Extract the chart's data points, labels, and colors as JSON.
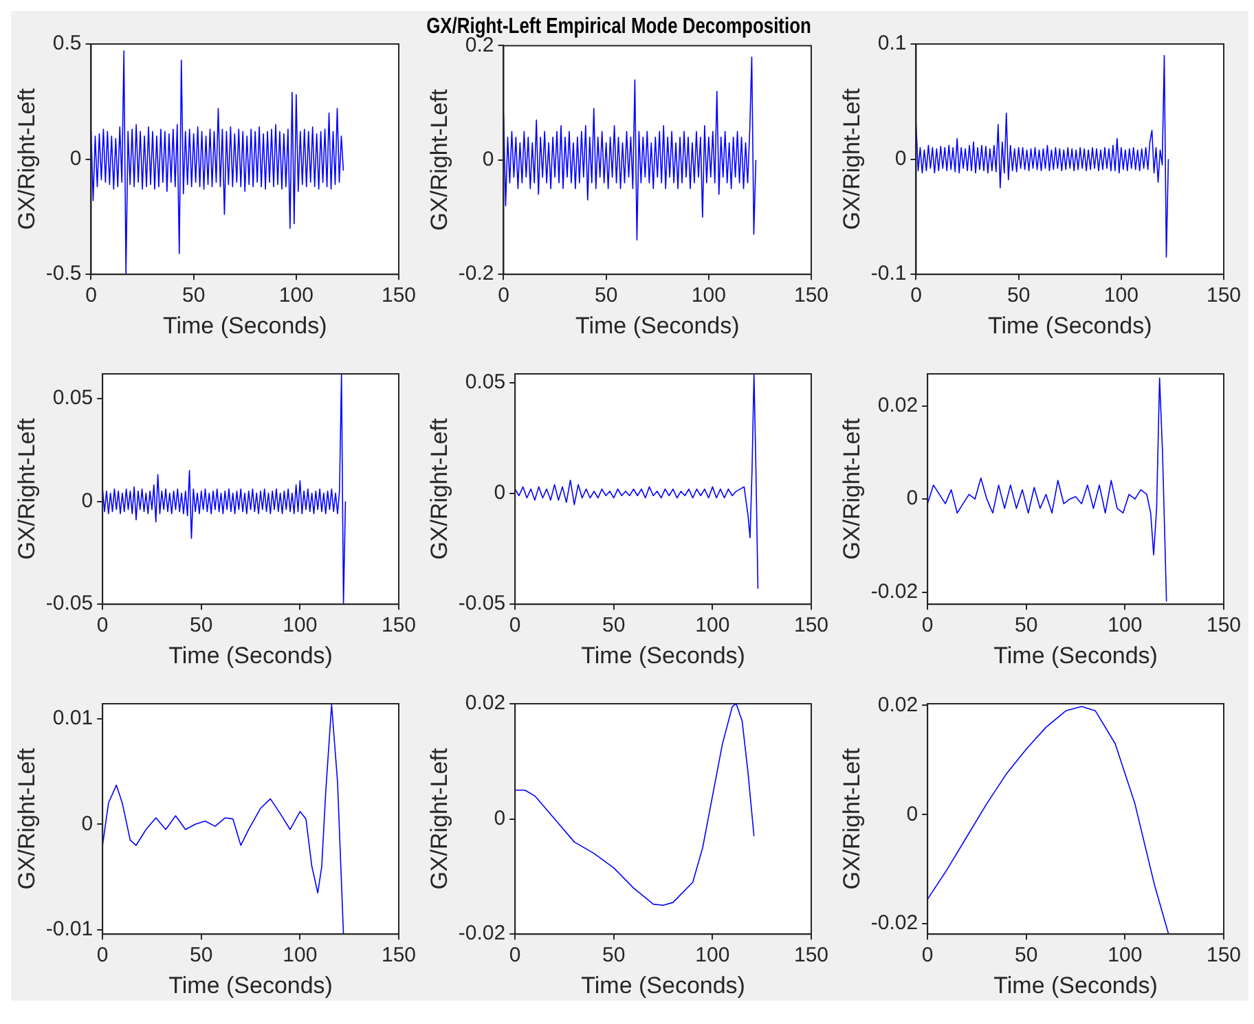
{
  "chart_data": [
    {
      "type": "line",
      "xlabel": "Time (Seconds)",
      "ylabel": "GX/Right-Left",
      "color": "#0000ff",
      "xlim": [
        0,
        150
      ],
      "xticks": [
        0,
        50,
        100,
        150
      ],
      "ylim": [
        -0.5,
        0.5
      ],
      "yticks": [
        -0.5,
        0,
        0.5
      ],
      "x": [
        0,
        1,
        2,
        3,
        4,
        5,
        6,
        7,
        8,
        9,
        10,
        11,
        12,
        13,
        14,
        15,
        16,
        17,
        18,
        19,
        20,
        21,
        22,
        23,
        24,
        25,
        26,
        27,
        28,
        29,
        30,
        31,
        32,
        33,
        34,
        35,
        36,
        37,
        38,
        39,
        40,
        41,
        42,
        43,
        44,
        45,
        46,
        47,
        48,
        49,
        50,
        51,
        52,
        53,
        54,
        55,
        56,
        57,
        58,
        59,
        60,
        61,
        62,
        63,
        64,
        65,
        66,
        67,
        68,
        69,
        70,
        71,
        72,
        73,
        74,
        75,
        76,
        77,
        78,
        79,
        80,
        81,
        82,
        83,
        84,
        85,
        86,
        87,
        88,
        89,
        90,
        91,
        92,
        93,
        94,
        95,
        96,
        97,
        98,
        99,
        100,
        101,
        102,
        103,
        104,
        105,
        106,
        107,
        108,
        109,
        110,
        111,
        112,
        113,
        114,
        115,
        116,
        117,
        118,
        119,
        120,
        121,
        122,
        123
      ],
      "values": [
        0.12,
        -0.18,
        0.1,
        -0.12,
        0.11,
        -0.09,
        0.13,
        -0.1,
        0.12,
        -0.11,
        0.1,
        -0.13,
        0.09,
        -0.12,
        0.14,
        -0.1,
        0.47,
        -0.5,
        0.12,
        -0.11,
        0.13,
        -0.12,
        0.15,
        -0.1,
        0.12,
        -0.13,
        0.1,
        -0.12,
        0.14,
        -0.11,
        0.12,
        -0.13,
        0.1,
        -0.12,
        0.13,
        -0.1,
        0.12,
        -0.14,
        0.11,
        -0.1,
        0.13,
        -0.12,
        0.15,
        -0.41,
        0.43,
        -0.15,
        0.12,
        -0.11,
        0.13,
        -0.12,
        0.11,
        -0.1,
        0.14,
        -0.12,
        0.12,
        -0.13,
        0.1,
        -0.11,
        0.13,
        -0.12,
        0.12,
        -0.1,
        0.22,
        -0.12,
        0.13,
        -0.24,
        0.12,
        -0.11,
        0.14,
        -0.12,
        0.11,
        -0.1,
        0.13,
        -0.12,
        0.12,
        -0.14,
        0.1,
        -0.11,
        0.13,
        -0.12,
        0.12,
        -0.1,
        0.14,
        -0.12,
        0.11,
        -0.13,
        0.12,
        -0.1,
        0.13,
        -0.12,
        0.15,
        -0.11,
        0.12,
        -0.13,
        0.11,
        -0.12,
        0.13,
        -0.3,
        0.29,
        -0.28,
        0.28,
        -0.14,
        0.12,
        -0.11,
        0.13,
        -0.12,
        0.12,
        -0.1,
        0.14,
        -0.12,
        0.11,
        -0.13,
        0.12,
        -0.1,
        0.13,
        -0.12,
        0.2,
        -0.13,
        0.12,
        -0.11,
        0.22,
        -0.1,
        0.1,
        -0.05
      ]
    },
    {
      "type": "line",
      "title": "GX/Right-Left Empirical Mode Decomposition",
      "xlabel": "Time (Seconds)",
      "ylabel": "GX/Right-Left",
      "color": "#0000ff",
      "xlim": [
        0,
        150
      ],
      "xticks": [
        0,
        50,
        100,
        150
      ],
      "ylim": [
        -0.2,
        0.2
      ],
      "yticks": [
        -0.2,
        0,
        0.2
      ],
      "x": [
        0,
        1,
        2,
        3,
        4,
        5,
        6,
        7,
        8,
        9,
        10,
        11,
        12,
        13,
        14,
        15,
        16,
        17,
        18,
        19,
        20,
        21,
        22,
        23,
        24,
        25,
        26,
        27,
        28,
        29,
        30,
        31,
        32,
        33,
        34,
        35,
        36,
        37,
        38,
        39,
        40,
        41,
        42,
        43,
        44,
        45,
        46,
        47,
        48,
        49,
        50,
        51,
        52,
        53,
        54,
        55,
        56,
        57,
        58,
        59,
        60,
        61,
        62,
        63,
        64,
        65,
        66,
        67,
        68,
        69,
        70,
        71,
        72,
        73,
        74,
        75,
        76,
        77,
        78,
        79,
        80,
        81,
        82,
        83,
        84,
        85,
        86,
        87,
        88,
        89,
        90,
        91,
        92,
        93,
        94,
        95,
        96,
        97,
        98,
        99,
        100,
        101,
        102,
        103,
        104,
        105,
        106,
        107,
        108,
        109,
        110,
        111,
        112,
        113,
        114,
        115,
        116,
        117,
        118,
        119,
        120,
        121,
        122,
        123
      ],
      "values": [
        0.08,
        -0.08,
        0.04,
        -0.04,
        0.05,
        -0.03,
        0.04,
        -0.05,
        0.03,
        -0.04,
        0.05,
        -0.03,
        0.04,
        -0.05,
        0.03,
        -0.04,
        0.07,
        -0.06,
        0.04,
        -0.03,
        0.05,
        -0.04,
        0.03,
        -0.05,
        0.04,
        -0.03,
        0.05,
        -0.04,
        0.06,
        -0.05,
        0.04,
        -0.03,
        0.05,
        -0.04,
        0.03,
        -0.05,
        0.04,
        -0.04,
        0.05,
        -0.03,
        0.06,
        -0.07,
        0.04,
        -0.04,
        0.09,
        -0.05,
        0.04,
        -0.03,
        0.05,
        -0.04,
        0.03,
        -0.05,
        0.04,
        -0.03,
        0.06,
        -0.04,
        0.04,
        -0.05,
        0.03,
        -0.04,
        0.05,
        -0.03,
        0.04,
        -0.05,
        0.14,
        -0.14,
        0.05,
        -0.04,
        0.04,
        -0.03,
        0.05,
        -0.04,
        0.03,
        -0.05,
        0.04,
        -0.03,
        0.05,
        -0.04,
        0.06,
        -0.05,
        0.04,
        -0.03,
        0.05,
        -0.04,
        0.03,
        -0.05,
        0.04,
        -0.04,
        0.05,
        -0.03,
        0.04,
        -0.05,
        0.03,
        -0.04,
        0.05,
        -0.03,
        0.04,
        -0.1,
        0.06,
        -0.04,
        0.04,
        -0.03,
        0.05,
        -0.04,
        0.12,
        -0.06,
        0.04,
        -0.03,
        0.05,
        -0.04,
        0.03,
        -0.05,
        0.04,
        -0.03,
        0.05,
        -0.04,
        0.04,
        -0.05,
        0.03,
        -0.04,
        0.05,
        0.18,
        -0.13,
        0
      ]
    },
    {
      "type": "line",
      "xlabel": "Time (Seconds)",
      "ylabel": "GX/Right-Left",
      "color": "#0000ff",
      "xlim": [
        0,
        150
      ],
      "xticks": [
        0,
        50,
        100,
        150
      ],
      "ylim": [
        -0.1,
        0.1
      ],
      "yticks": [
        -0.1,
        0,
        0.1
      ],
      "x": [
        0,
        1,
        2,
        3,
        4,
        5,
        6,
        7,
        8,
        9,
        10,
        11,
        12,
        13,
        14,
        15,
        16,
        17,
        18,
        19,
        20,
        21,
        22,
        23,
        24,
        25,
        26,
        27,
        28,
        29,
        30,
        31,
        32,
        33,
        34,
        35,
        36,
        37,
        38,
        39,
        40,
        41,
        42,
        43,
        44,
        45,
        46,
        47,
        48,
        49,
        50,
        51,
        52,
        53,
        54,
        55,
        56,
        57,
        58,
        59,
        60,
        61,
        62,
        63,
        64,
        65,
        66,
        67,
        68,
        69,
        70,
        71,
        72,
        73,
        74,
        75,
        76,
        77,
        78,
        79,
        80,
        81,
        82,
        83,
        84,
        85,
        86,
        87,
        88,
        89,
        90,
        91,
        92,
        93,
        94,
        95,
        96,
        97,
        98,
        99,
        100,
        101,
        102,
        103,
        104,
        105,
        106,
        107,
        108,
        109,
        110,
        111,
        112,
        113,
        114,
        115,
        116,
        117,
        118,
        119,
        120,
        121,
        122,
        123
      ],
      "values": [
        0.03,
        -0.01,
        0.01,
        -0.012,
        0.008,
        -0.01,
        0.012,
        -0.008,
        0.01,
        -0.012,
        0.009,
        -0.01,
        0.011,
        -0.008,
        0.01,
        -0.01,
        0.012,
        -0.009,
        0.01,
        -0.011,
        0.018,
        -0.012,
        0.01,
        -0.008,
        0.009,
        -0.01,
        0.012,
        -0.01,
        0.015,
        -0.012,
        0.01,
        -0.009,
        0.012,
        -0.01,
        0.011,
        -0.012,
        0.009,
        -0.01,
        0.012,
        -0.011,
        0.03,
        -0.025,
        0.015,
        -0.012,
        0.04,
        -0.018,
        0.012,
        -0.01,
        0.009,
        -0.011,
        0.01,
        -0.008,
        0.01,
        -0.009,
        0.008,
        -0.01,
        0.009,
        -0.008,
        0.01,
        -0.009,
        0.008,
        -0.01,
        0.009,
        -0.008,
        0.012,
        -0.01,
        0.008,
        -0.009,
        0.01,
        -0.008,
        0.009,
        -0.01,
        0.008,
        -0.009,
        0.01,
        -0.008,
        0.009,
        -0.01,
        0.008,
        -0.009,
        0.01,
        -0.008,
        0.009,
        -0.01,
        0.008,
        -0.009,
        0.01,
        -0.008,
        0.009,
        -0.01,
        0.008,
        -0.009,
        0.01,
        -0.008,
        0.009,
        -0.01,
        0.012,
        -0.01,
        0.018,
        -0.012,
        0.01,
        -0.009,
        0.008,
        -0.01,
        0.009,
        -0.008,
        0.01,
        -0.009,
        0.008,
        -0.01,
        0.009,
        -0.008,
        0.01,
        -0.009,
        0.015,
        0.025,
        -0.012,
        0.01,
        -0.02,
        0.008,
        -0.005,
        0.09,
        -0.085,
        0
      ]
    },
    {
      "type": "line",
      "xlabel": "Time (Seconds)",
      "ylabel": "GX/Right-Left",
      "color": "#0000ff",
      "xlim": [
        0,
        150
      ],
      "xticks": [
        0,
        50,
        100,
        150
      ],
      "ylim": [
        -0.05,
        0.062
      ],
      "yticks": [
        -0.05,
        0,
        0.05
      ],
      "x": [
        0,
        1,
        2,
        3,
        4,
        5,
        6,
        7,
        8,
        9,
        10,
        11,
        12,
        13,
        14,
        15,
        16,
        17,
        18,
        19,
        20,
        21,
        22,
        23,
        24,
        25,
        26,
        27,
        28,
        29,
        30,
        31,
        32,
        33,
        34,
        35,
        36,
        37,
        38,
        39,
        40,
        41,
        42,
        43,
        44,
        45,
        46,
        47,
        48,
        49,
        50,
        51,
        52,
        53,
        54,
        55,
        56,
        57,
        58,
        59,
        60,
        61,
        62,
        63,
        64,
        65,
        66,
        67,
        68,
        69,
        70,
        71,
        72,
        73,
        74,
        75,
        76,
        77,
        78,
        79,
        80,
        81,
        82,
        83,
        84,
        85,
        86,
        87,
        88,
        89,
        90,
        91,
        92,
        93,
        94,
        95,
        96,
        97,
        98,
        99,
        100,
        101,
        102,
        103,
        104,
        105,
        106,
        107,
        108,
        109,
        110,
        111,
        112,
        113,
        114,
        115,
        116,
        117,
        118,
        119,
        120,
        121,
        122,
        123
      ],
      "values": [
        0.006,
        -0.005,
        0.005,
        -0.006,
        0.004,
        -0.005,
        0.006,
        -0.004,
        0.005,
        -0.006,
        0.004,
        -0.005,
        0.006,
        -0.004,
        0.005,
        -0.006,
        0.007,
        -0.009,
        0.005,
        -0.004,
        0.006,
        -0.005,
        0.004,
        -0.006,
        0.005,
        -0.004,
        0.008,
        -0.01,
        0.013,
        -0.006,
        0.005,
        -0.004,
        0.006,
        -0.005,
        0.004,
        -0.006,
        0.005,
        -0.004,
        0.006,
        -0.005,
        0.004,
        -0.006,
        0.005,
        -0.007,
        0.015,
        -0.018,
        0.006,
        -0.005,
        0.004,
        -0.006,
        0.005,
        -0.004,
        0.006,
        -0.005,
        0.004,
        -0.006,
        0.005,
        -0.004,
        0.006,
        -0.005,
        0.004,
        -0.006,
        0.005,
        -0.004,
        0.006,
        -0.005,
        0.004,
        -0.006,
        0.005,
        -0.004,
        0.006,
        -0.005,
        0.004,
        -0.006,
        0.005,
        -0.004,
        0.006,
        -0.005,
        0.004,
        -0.006,
        0.005,
        -0.004,
        0.006,
        -0.005,
        0.004,
        -0.006,
        0.005,
        -0.004,
        0.006,
        -0.005,
        0.004,
        -0.006,
        0.005,
        -0.004,
        0.006,
        -0.005,
        0.004,
        -0.006,
        0.008,
        -0.005,
        0.01,
        -0.006,
        0.005,
        -0.004,
        0.006,
        -0.005,
        0.004,
        -0.006,
        0.005,
        -0.004,
        0.006,
        -0.005,
        0.004,
        -0.006,
        0.005,
        -0.004,
        0.006,
        -0.005,
        0.004,
        -0.006,
        0.005,
        0.062,
        -0.05,
        0
      ]
    },
    {
      "type": "line",
      "xlabel": "Time (Seconds)",
      "ylabel": "GX/Right-Left",
      "color": "#0000ff",
      "xlim": [
        0,
        150
      ],
      "xticks": [
        0,
        50,
        100,
        150
      ],
      "ylim": [
        -0.05,
        0.054
      ],
      "yticks": [
        -0.05,
        0,
        0.05
      ],
      "x": [
        0,
        2,
        4,
        6,
        8,
        10,
        12,
        14,
        16,
        18,
        20,
        22,
        24,
        26,
        28,
        30,
        32,
        34,
        36,
        38,
        40,
        42,
        44,
        46,
        48,
        50,
        52,
        54,
        56,
        58,
        60,
        62,
        64,
        66,
        68,
        70,
        72,
        74,
        76,
        78,
        80,
        82,
        84,
        86,
        88,
        90,
        92,
        94,
        96,
        98,
        100,
        102,
        104,
        106,
        108,
        110,
        112,
        114,
        116,
        118,
        119,
        120,
        121,
        122,
        123
      ],
      "values": [
        0.002,
        -0.001,
        0.003,
        -0.002,
        0.002,
        -0.003,
        0.003,
        -0.002,
        0.002,
        -0.003,
        0.004,
        -0.003,
        0.003,
        -0.004,
        0.006,
        -0.005,
        0.004,
        -0.002,
        0.002,
        -0.002,
        0.001,
        -0.002,
        0.002,
        -0.001,
        0.001,
        -0.002,
        0.002,
        -0.001,
        0.001,
        -0.001,
        0.002,
        -0.001,
        0.002,
        -0.002,
        0.003,
        -0.001,
        0.001,
        -0.002,
        0.002,
        -0.001,
        0.002,
        -0.002,
        0.001,
        -0.001,
        0.002,
        -0.002,
        0.002,
        -0.001,
        0.002,
        -0.002,
        0.003,
        -0.002,
        0.002,
        -0.002,
        0.002,
        -0.001,
        0.001,
        0.002,
        0.003,
        -0.01,
        -0.02,
        0.01,
        0.054,
        0.01,
        -0.043
      ]
    },
    {
      "type": "line",
      "xlabel": "Time (Seconds)",
      "ylabel": "GX/Right-Left",
      "color": "#0000ff",
      "xlim": [
        0,
        150
      ],
      "xticks": [
        0,
        50,
        100,
        150
      ],
      "ylim": [
        -0.0226,
        0.0269
      ],
      "yticks": [
        -0.02,
        0,
        0.02
      ],
      "x": [
        0,
        3,
        6,
        9,
        12,
        15,
        18,
        21,
        24,
        27,
        30,
        33,
        36,
        39,
        42,
        45,
        48,
        51,
        54,
        57,
        60,
        63,
        66,
        69,
        72,
        75,
        78,
        81,
        84,
        87,
        90,
        93,
        96,
        99,
        102,
        105,
        108,
        111,
        113,
        114.5,
        116,
        117.5,
        119,
        121
      ],
      "values": [
        -0.001,
        0.003,
        0.001,
        -0.001,
        0.002,
        -0.003,
        -0.001,
        0.001,
        0,
        0.0045,
        0,
        -0.003,
        0.003,
        -0.002,
        0.003,
        -0.002,
        0.002,
        -0.003,
        0.0025,
        -0.002,
        0.001,
        -0.003,
        0.004,
        -0.001,
        0,
        0.0005,
        -0.001,
        0.003,
        -0.002,
        0.003,
        -0.003,
        0.004,
        -0.002,
        -0.003,
        0.001,
        0,
        0.002,
        0.001,
        -0.003,
        -0.012,
        -0.002,
        0.026,
        0.01,
        -0.022
      ]
    },
    {
      "type": "line",
      "xlabel": "Time (Seconds)",
      "ylabel": "GX/Right-Left",
      "color": "#0000ff",
      "xlim": [
        0,
        150
      ],
      "xticks": [
        0,
        50,
        100,
        150
      ],
      "ylim": [
        -0.0104,
        0.0114
      ],
      "yticks": [
        -0.01,
        0,
        0.01
      ],
      "x": [
        0,
        3,
        7,
        10,
        14,
        17,
        22,
        27,
        32,
        37,
        42,
        47,
        52,
        57,
        62,
        66,
        70,
        74,
        80,
        85,
        90,
        95,
        100,
        103,
        106,
        109,
        111,
        113,
        116,
        119,
        122
      ],
      "values": [
        -0.002,
        0.002,
        0.0037,
        0.002,
        -0.0015,
        -0.002,
        -0.0005,
        0.0006,
        -0.0005,
        0.0008,
        -0.0005,
        0,
        0.0003,
        -0.0002,
        0.0006,
        0.0005,
        -0.002,
        -0.0005,
        0.0015,
        0.0024,
        0.001,
        -0.0005,
        0.0012,
        0.0005,
        -0.004,
        -0.0065,
        -0.004,
        0.003,
        0.0113,
        0.004,
        -0.0104
      ]
    },
    {
      "type": "line",
      "xlabel": "Time (Seconds)",
      "ylabel": "GX/Right-Left",
      "color": "#0000ff",
      "xlim": [
        0,
        150
      ],
      "xticks": [
        0,
        50,
        100,
        150
      ],
      "ylim": [
        -0.02,
        0.02
      ],
      "yticks": [
        -0.02,
        0,
        0.02
      ],
      "x": [
        0,
        5,
        10,
        20,
        30,
        40,
        50,
        60,
        70,
        75,
        80,
        90,
        95,
        100,
        105,
        110,
        112,
        115,
        118,
        121
      ],
      "values": [
        0.005,
        0.005,
        0.004,
        0,
        -0.004,
        -0.006,
        -0.0085,
        -0.012,
        -0.0148,
        -0.015,
        -0.0145,
        -0.011,
        -0.005,
        0.004,
        0.013,
        0.0195,
        0.02,
        0.017,
        0.008,
        -0.003
      ]
    },
    {
      "type": "line",
      "xlabel": "Time (Seconds)",
      "ylabel": "GX/Right-Left",
      "color": "#0000ff",
      "xlim": [
        0,
        150
      ],
      "xticks": [
        0,
        50,
        100,
        150
      ],
      "ylim": [
        -0.0219,
        0.0203
      ],
      "yticks": [
        -0.02,
        0,
        0.02
      ],
      "x": [
        0,
        10,
        20,
        30,
        40,
        50,
        60,
        70,
        78,
        85,
        95,
        105,
        115,
        122
      ],
      "values": [
        -0.0155,
        -0.01,
        -0.004,
        0.002,
        0.0075,
        0.012,
        0.016,
        0.019,
        0.0198,
        0.019,
        0.013,
        0.002,
        -0.013,
        -0.0218
      ]
    }
  ]
}
